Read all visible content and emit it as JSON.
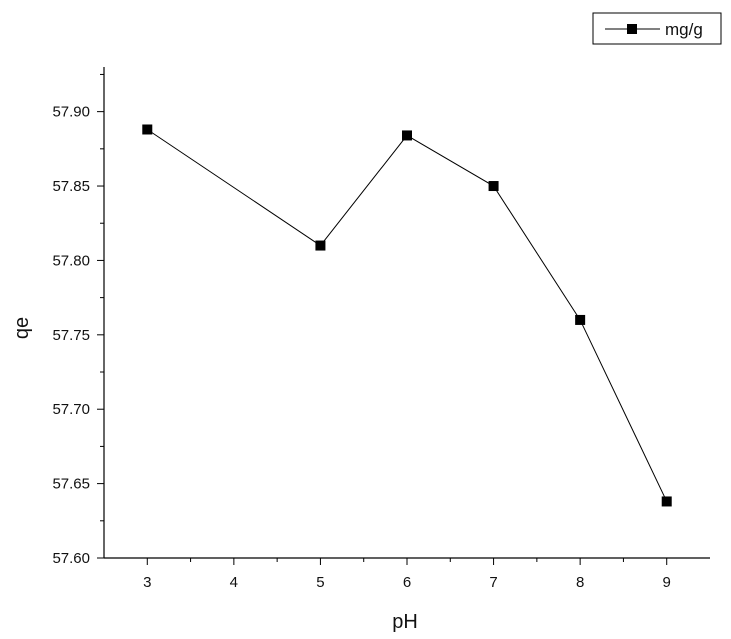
{
  "chart_data": {
    "type": "line",
    "title": "",
    "xlabel": "pH",
    "ylabel": "qe",
    "xlim": [
      2.5,
      9.5
    ],
    "ylim": [
      57.6,
      57.93
    ],
    "x_ticks": [
      3,
      4,
      5,
      6,
      7,
      8,
      9
    ],
    "x_tick_labels": [
      "3",
      "4",
      "5",
      "6",
      "7",
      "8",
      "9"
    ],
    "y_ticks": [
      57.6,
      57.65,
      57.7,
      57.75,
      57.8,
      57.85,
      57.9
    ],
    "y_tick_labels": [
      "57.60",
      "57.65",
      "57.70",
      "57.75",
      "57.80",
      "57.85",
      "57.90"
    ],
    "grid": false,
    "legend_position": "top-right",
    "series": [
      {
        "name": "mg/g",
        "marker": "square",
        "color": "#000000",
        "x": [
          3,
          5,
          6,
          7,
          8,
          9
        ],
        "y": [
          57.888,
          57.81,
          57.884,
          57.85,
          57.76,
          57.638
        ]
      }
    ]
  }
}
